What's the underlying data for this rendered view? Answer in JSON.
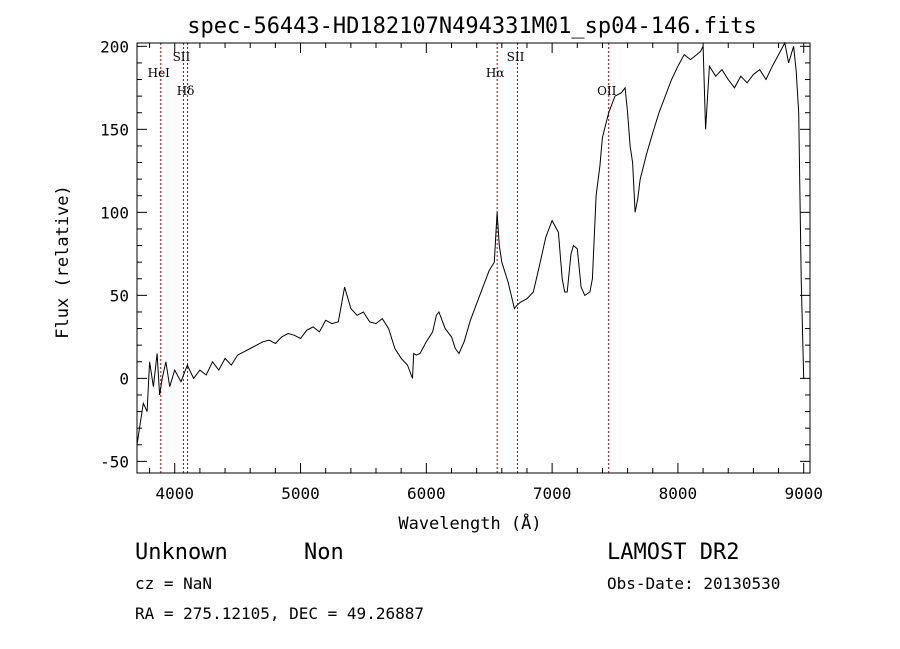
{
  "chart_data": {
    "type": "line",
    "title": "spec-56443-HD182107N494331M01_sp04-146.fits",
    "xlabel": "Wavelength (Å)",
    "ylabel": "Flux (relative)",
    "xlim": [
      3700,
      9050
    ],
    "ylim": [
      -57,
      202
    ],
    "xticks": [
      4000,
      5000,
      6000,
      7000,
      8000,
      9000
    ],
    "yticks": [
      -50,
      0,
      50,
      100,
      150,
      200
    ],
    "grid": false,
    "series": [
      {
        "x": [
          3700,
          3720,
          3750,
          3780,
          3800,
          3830,
          3860,
          3880,
          3900,
          3930,
          3960,
          4000,
          4050,
          4100,
          4150,
          4200,
          4250,
          4300,
          4350,
          4400,
          4450,
          4500,
          4550,
          4600,
          4650,
          4700,
          4750,
          4800,
          4850,
          4900,
          4950,
          5000,
          5050,
          5100,
          5150,
          5200,
          5250,
          5300,
          5350,
          5400,
          5450,
          5500,
          5550,
          5600,
          5650,
          5700,
          5750,
          5800,
          5850,
          5880,
          5890,
          5900,
          5920,
          5950,
          6000,
          6050,
          6080,
          6100,
          6150,
          6200,
          6230,
          6260,
          6300,
          6350,
          6400,
          6450,
          6500,
          6540,
          6563,
          6580,
          6600,
          6650,
          6700,
          6720,
          6750,
          6800,
          6850,
          6900,
          6950,
          7000,
          7050,
          7080,
          7100,
          7120,
          7150,
          7170,
          7200,
          7230,
          7260,
          7300,
          7320,
          7350,
          7380,
          7400,
          7450,
          7500,
          7550,
          7580,
          7600,
          7620,
          7640,
          7660,
          7680,
          7700,
          7750,
          7800,
          7850,
          7900,
          7950,
          8000,
          8050,
          8100,
          8150,
          8180,
          8200,
          8220,
          8250,
          8300,
          8350,
          8400,
          8450,
          8500,
          8550,
          8600,
          8650,
          8700,
          8750,
          8800,
          8850,
          8880,
          8900,
          8920,
          8940,
          8960,
          8980,
          9000
        ],
        "y": [
          -40,
          -30,
          -15,
          -20,
          10,
          -5,
          15,
          -10,
          0,
          10,
          -5,
          5,
          -2,
          8,
          0,
          5,
          2,
          10,
          5,
          12,
          8,
          14,
          16,
          18,
          20,
          22,
          23,
          21,
          25,
          27,
          26,
          24,
          29,
          31,
          28,
          35,
          33,
          34,
          55,
          42,
          38,
          40,
          34,
          33,
          36,
          30,
          18,
          12,
          8,
          2,
          0,
          15,
          14,
          15,
          22,
          28,
          38,
          40,
          30,
          25,
          18,
          15,
          22,
          35,
          45,
          55,
          65,
          70,
          100,
          80,
          70,
          58,
          42,
          44,
          46,
          48,
          52,
          68,
          85,
          95,
          88,
          60,
          52,
          52,
          75,
          80,
          78,
          55,
          50,
          52,
          60,
          110,
          128,
          145,
          160,
          170,
          172,
          175,
          160,
          140,
          130,
          100,
          108,
          120,
          135,
          148,
          160,
          170,
          180,
          188,
          195,
          192,
          195,
          197,
          200,
          150,
          188,
          182,
          186,
          180,
          175,
          182,
          178,
          183,
          186,
          180,
          188,
          195,
          202,
          190,
          195,
          200,
          185,
          160,
          60,
          0
        ]
      }
    ],
    "lines": [
      {
        "x": 3889,
        "label": "HeI"
      },
      {
        "x": 4069,
        "label": "SII"
      },
      {
        "x": 4102,
        "label": "Hδ"
      },
      {
        "x": 6563,
        "label": "Hα"
      },
      {
        "x": 6725,
        "label": "SII"
      },
      {
        "x": 7450,
        "label": "OII"
      }
    ]
  },
  "info": {
    "class": "Unknown",
    "subclass": "Non",
    "cz": "cz = NaN",
    "coords": "RA = 275.12105, DEC =  49.26887",
    "survey": "LAMOST DR2",
    "obs_date": "Obs-Date: 20130530"
  }
}
